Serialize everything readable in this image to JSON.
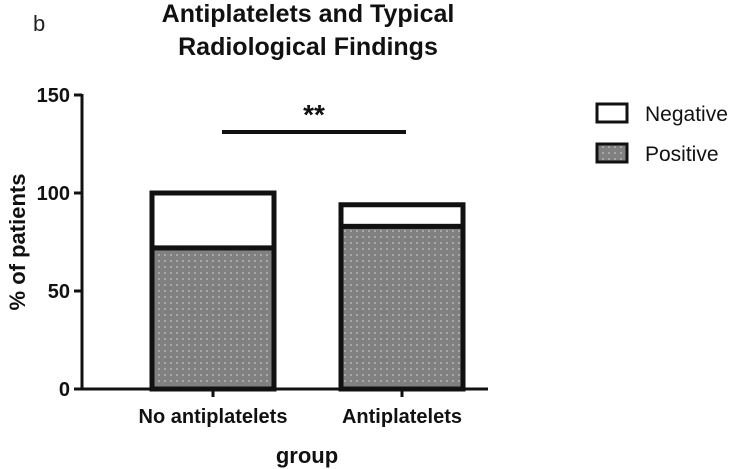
{
  "chart_data": {
    "type": "bar",
    "stacked": true,
    "panel_label": "b",
    "title": "Antiplatelets and Typical Radiological Findings",
    "title_lines": [
      "Antiplatelets and Typical",
      "Radiological Findings"
    ],
    "xlabel": "group",
    "ylabel": "% of patients",
    "categories": [
      "No antiplatelets",
      "Antiplatelets"
    ],
    "series": [
      {
        "name": "Positive",
        "values": [
          72,
          83
        ],
        "color": "#808080",
        "pattern": "dotted"
      },
      {
        "name": "Negative",
        "values": [
          28,
          11
        ],
        "color": "#ffffff",
        "pattern": "none"
      }
    ],
    "ylim": [
      0,
      150
    ],
    "yticks": [
      0,
      50,
      100,
      150
    ],
    "grid": false,
    "legend_position": "right",
    "annotations": [
      {
        "text": "**",
        "type": "significance-bracket",
        "between": [
          "No antiplatelets",
          "Antiplatelets"
        ]
      }
    ]
  }
}
